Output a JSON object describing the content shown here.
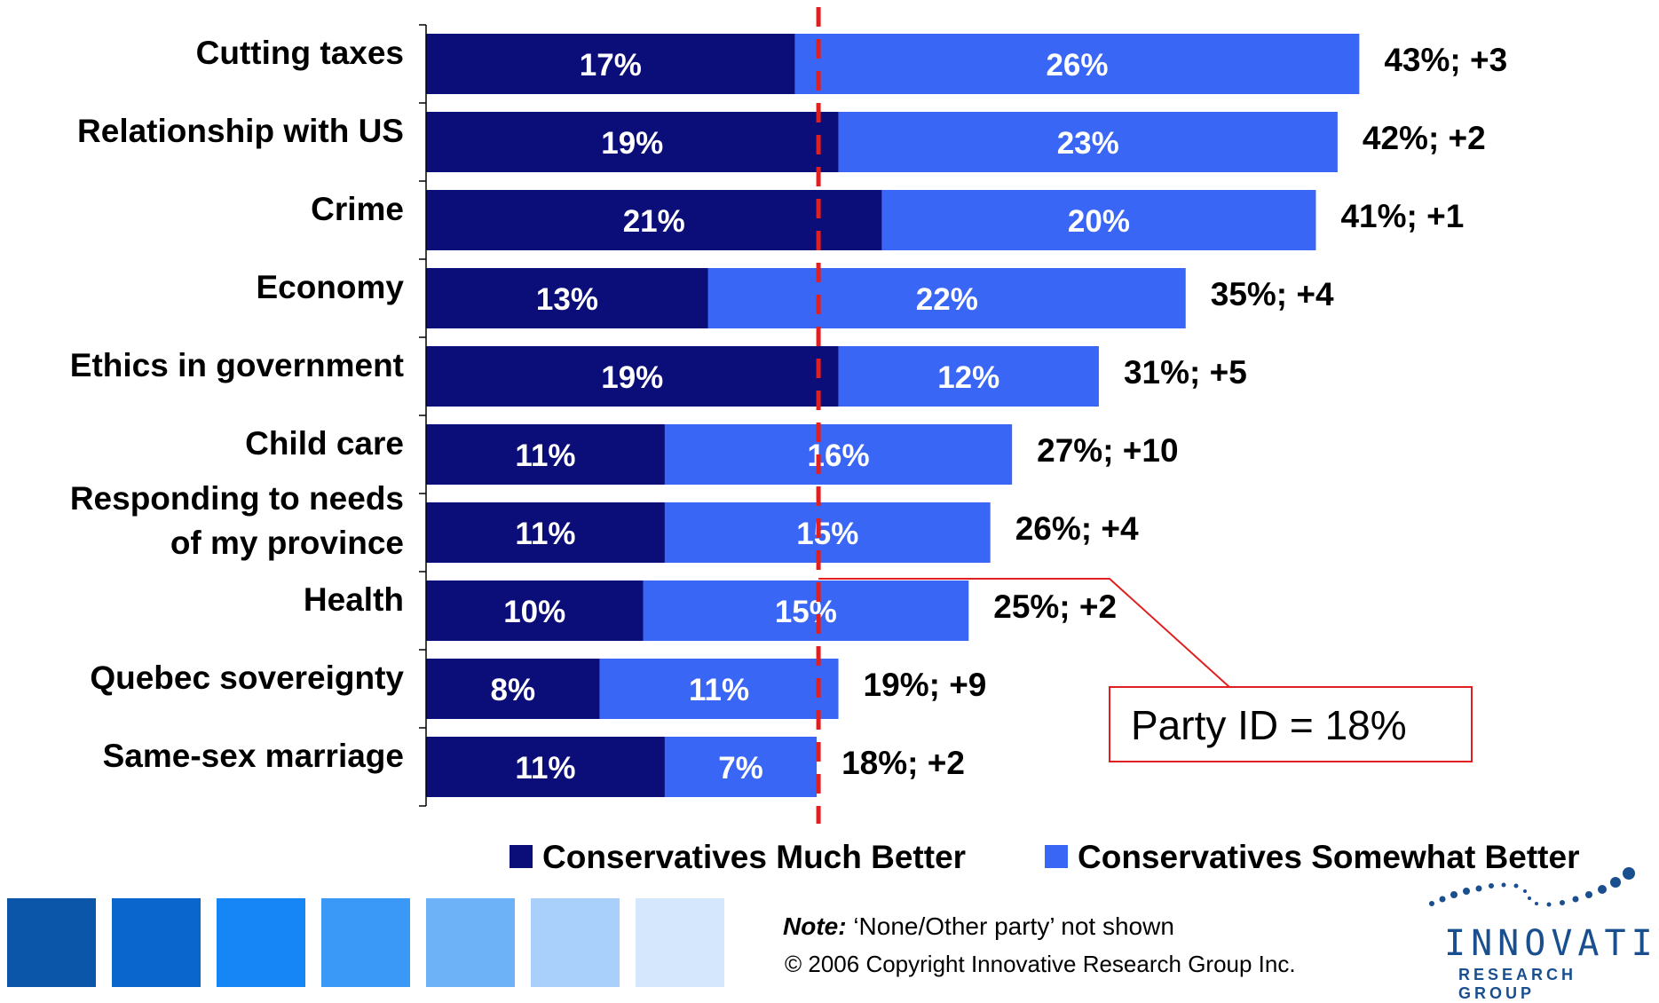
{
  "chart_data": {
    "type": "bar",
    "orientation": "horizontal",
    "stacked": true,
    "categories": [
      "Cutting taxes",
      "Relationship with US",
      "Crime",
      "Economy",
      "Ethics in government",
      "Child care",
      "Responding to needs of my province",
      "Health",
      "Quebec sovereignty",
      "Same-sex marriage"
    ],
    "category_lines": [
      [
        "Cutting taxes"
      ],
      [
        "Relationship with US"
      ],
      [
        "Crime"
      ],
      [
        "Economy"
      ],
      [
        "Ethics in government"
      ],
      [
        "Child care"
      ],
      [
        "Responding to needs",
        "of my province"
      ],
      [
        "Health"
      ],
      [
        "Quebec sovereignty"
      ],
      [
        "Same-sex marriage"
      ]
    ],
    "series": [
      {
        "name": "Conservatives Much Better",
        "color": "#0b0e78",
        "values": [
          17,
          19,
          21,
          13,
          19,
          11,
          11,
          10,
          8,
          11
        ],
        "labels": [
          "17%",
          "19%",
          "21%",
          "13%",
          "19%",
          "11%",
          "11%",
          "10%",
          "8%",
          "11%"
        ]
      },
      {
        "name": "Conservatives Somewhat Better",
        "color": "#3a66f6",
        "values": [
          26,
          23,
          20,
          22,
          12,
          16,
          15,
          15,
          11,
          7
        ],
        "labels": [
          "26%",
          "23%",
          "20%",
          "22%",
          "12%",
          "16%",
          "15%",
          "15%",
          "11%",
          "7%"
        ]
      }
    ],
    "totals": [
      "43%; +3",
      "42%; +2",
      "41%; +1",
      "35%; +4",
      "31%; +5",
      "27%; +10",
      "26%; +4",
      "25%; +2",
      "19%; +9",
      "18%; +2"
    ],
    "reference_line": {
      "value": 18,
      "style": "dashed",
      "color": "#e02020"
    },
    "callout": "Party ID = 18%",
    "legend_position": "bottom",
    "xlim": [
      0,
      45
    ],
    "grid": false
  },
  "footer": {
    "note_label": "Note:",
    "note_text": " ‘None/Other party’ not shown",
    "copyright": "© 2006 Copyright Innovative Research Group Inc."
  },
  "logo": {
    "main": "INNOVATIVE",
    "sub": "RESEARCH GROUP"
  },
  "decor": {
    "squares": [
      "#0b56a8",
      "#0a66cc",
      "#1685f5",
      "#3a98f7",
      "#6db1f7",
      "#a8d0fa",
      "#d5e7fd"
    ]
  }
}
